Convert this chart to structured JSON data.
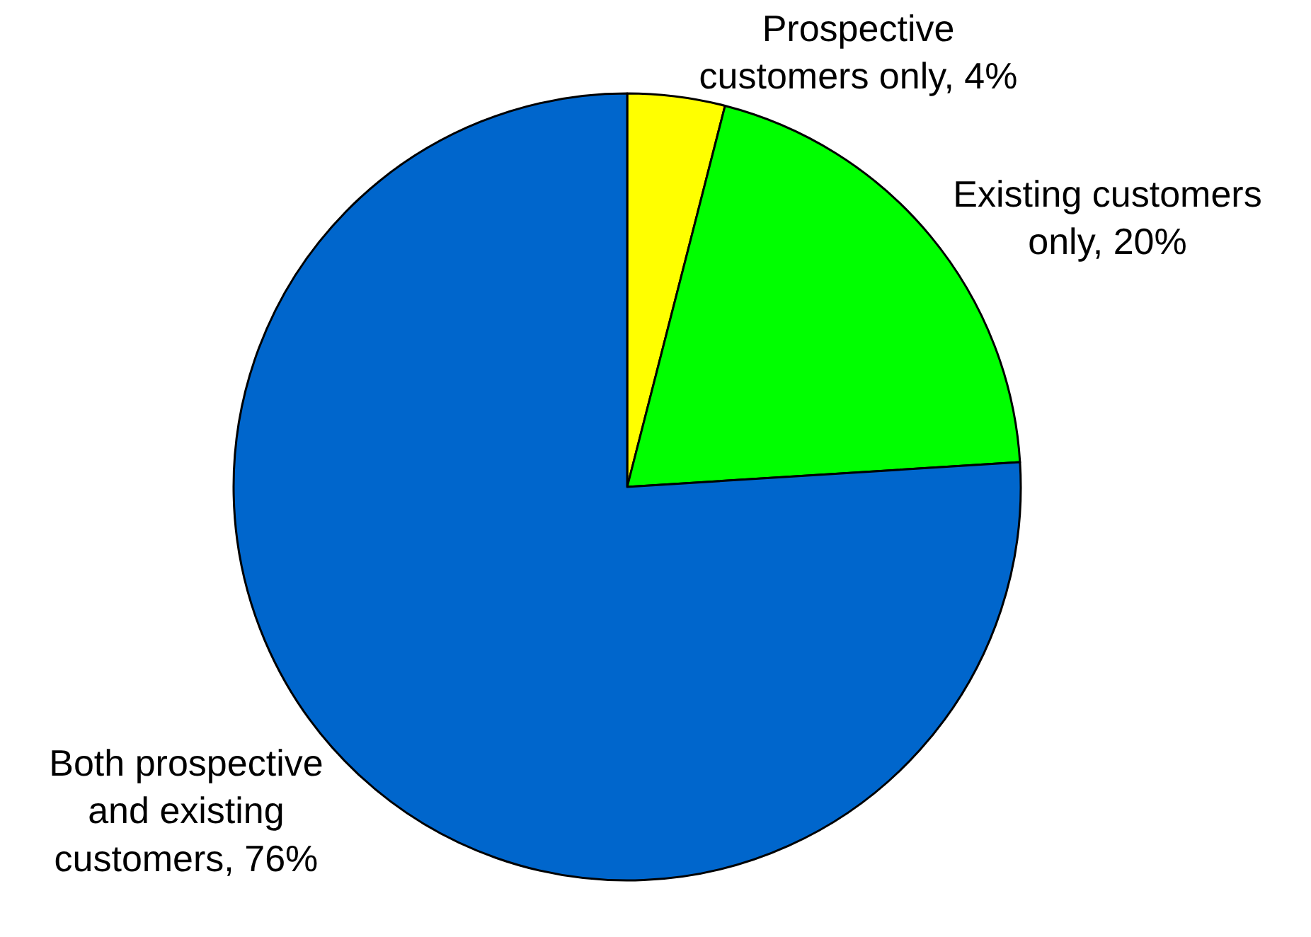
{
  "chart_data": {
    "type": "pie",
    "categories": [
      "Prospective customers only",
      "Existing customers only",
      "Both prospective and existing customers"
    ],
    "values": [
      4,
      20,
      76
    ],
    "value_labels": [
      "4%",
      "20%",
      "76%"
    ],
    "colors": [
      "#ffff00",
      "#00ff00",
      "#0066cc"
    ],
    "legend": false
  }
}
